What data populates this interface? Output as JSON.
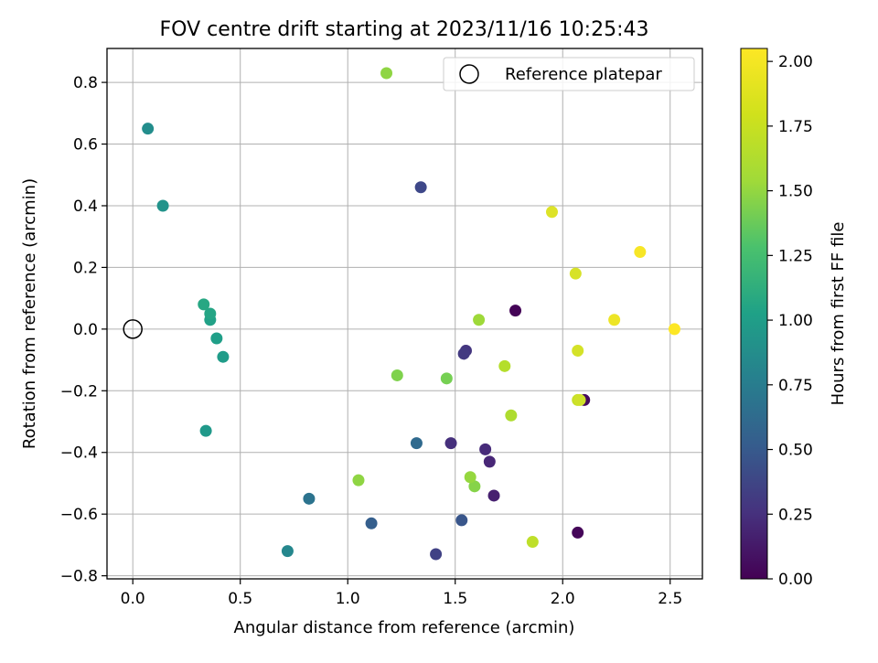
{
  "chart_data": {
    "type": "scatter",
    "title": "FOV centre drift starting at 2023/11/16 10:25:43",
    "xlabel": "Angular distance from reference (arcmin)",
    "ylabel": "Rotation from reference (arcmin)",
    "xlim": [
      -0.12,
      2.65
    ],
    "ylim": [
      -0.81,
      0.91
    ],
    "xticks": [
      0.0,
      0.5,
      1.0,
      1.5,
      2.0,
      2.5
    ],
    "xtick_labels": [
      "0.0",
      "0.5",
      "1.0",
      "1.5",
      "2.0",
      "2.5"
    ],
    "yticks": [
      -0.8,
      -0.6,
      -0.4,
      -0.2,
      0.0,
      0.2,
      0.4,
      0.6,
      0.8
    ],
    "ytick_labels": [
      "−0.8",
      "−0.6",
      "−0.4",
      "−0.2",
      "0.0",
      "0.2",
      "0.4",
      "0.6",
      "0.8"
    ],
    "grid": true,
    "legend": {
      "placement": "top-right",
      "entries": [
        "Reference platepar"
      ]
    },
    "reference_point": {
      "x": 0.0,
      "y": 0.0
    },
    "colorbar": {
      "label": "Hours from first FF file",
      "colormap": "viridis",
      "range": [
        0.0,
        2.05
      ],
      "ticks": [
        0.0,
        0.25,
        0.5,
        0.75,
        1.0,
        1.25,
        1.5,
        1.75,
        2.0
      ],
      "tick_labels": [
        "0.00",
        "0.25",
        "0.50",
        "0.75",
        "1.00",
        "1.25",
        "1.50",
        "1.75",
        "2.00"
      ]
    },
    "points": [
      {
        "x": 1.78,
        "y": 0.06,
        "hours": 0.02
      },
      {
        "x": 2.07,
        "y": -0.66,
        "hours": 0.03
      },
      {
        "x": 2.1,
        "y": -0.23,
        "hours": 0.05
      },
      {
        "x": 1.68,
        "y": -0.54,
        "hours": 0.18
      },
      {
        "x": 1.66,
        "y": -0.43,
        "hours": 0.22
      },
      {
        "x": 1.64,
        "y": -0.39,
        "hours": 0.25
      },
      {
        "x": 1.48,
        "y": -0.37,
        "hours": 0.28
      },
      {
        "x": 1.55,
        "y": -0.07,
        "hours": 0.32
      },
      {
        "x": 1.54,
        "y": -0.08,
        "hours": 0.35
      },
      {
        "x": 1.41,
        "y": -0.73,
        "hours": 0.4
      },
      {
        "x": 1.34,
        "y": 0.46,
        "hours": 0.45
      },
      {
        "x": 1.53,
        "y": -0.62,
        "hours": 0.55
      },
      {
        "x": 1.11,
        "y": -0.63,
        "hours": 0.62
      },
      {
        "x": 1.32,
        "y": -0.37,
        "hours": 0.7
      },
      {
        "x": 0.82,
        "y": -0.55,
        "hours": 0.78
      },
      {
        "x": 0.72,
        "y": -0.72,
        "hours": 0.95
      },
      {
        "x": 0.07,
        "y": 0.65,
        "hours": 1.0
      },
      {
        "x": 0.14,
        "y": 0.4,
        "hours": 1.05
      },
      {
        "x": 0.34,
        "y": -0.33,
        "hours": 1.1
      },
      {
        "x": 0.42,
        "y": -0.09,
        "hours": 1.12
      },
      {
        "x": 0.39,
        "y": -0.03,
        "hours": 1.15
      },
      {
        "x": 0.36,
        "y": 0.03,
        "hours": 1.17
      },
      {
        "x": 0.36,
        "y": 0.05,
        "hours": 1.2
      },
      {
        "x": 0.33,
        "y": 0.08,
        "hours": 1.22
      },
      {
        "x": 1.46,
        "y": -0.16,
        "hours": 1.62
      },
      {
        "x": 1.23,
        "y": -0.15,
        "hours": 1.65
      },
      {
        "x": 1.59,
        "y": -0.51,
        "hours": 1.67
      },
      {
        "x": 1.05,
        "y": -0.49,
        "hours": 1.7
      },
      {
        "x": 1.18,
        "y": 0.83,
        "hours": 1.7
      },
      {
        "x": 1.57,
        "y": -0.48,
        "hours": 1.72
      },
      {
        "x": 1.61,
        "y": 0.03,
        "hours": 1.75
      },
      {
        "x": 1.76,
        "y": -0.28,
        "hours": 1.8
      },
      {
        "x": 1.73,
        "y": -0.12,
        "hours": 1.82
      },
      {
        "x": 1.86,
        "y": -0.69,
        "hours": 1.85
      },
      {
        "x": 2.07,
        "y": -0.23,
        "hours": 1.88
      },
      {
        "x": 2.08,
        "y": -0.23,
        "hours": 1.9
      },
      {
        "x": 2.07,
        "y": -0.07,
        "hours": 1.92
      },
      {
        "x": 2.06,
        "y": 0.18,
        "hours": 1.93
      },
      {
        "x": 1.95,
        "y": 0.38,
        "hours": 1.95
      },
      {
        "x": 2.24,
        "y": 0.03,
        "hours": 2.0
      },
      {
        "x": 2.36,
        "y": 0.25,
        "hours": 2.03
      },
      {
        "x": 2.52,
        "y": 0.0,
        "hours": 2.05
      }
    ]
  }
}
